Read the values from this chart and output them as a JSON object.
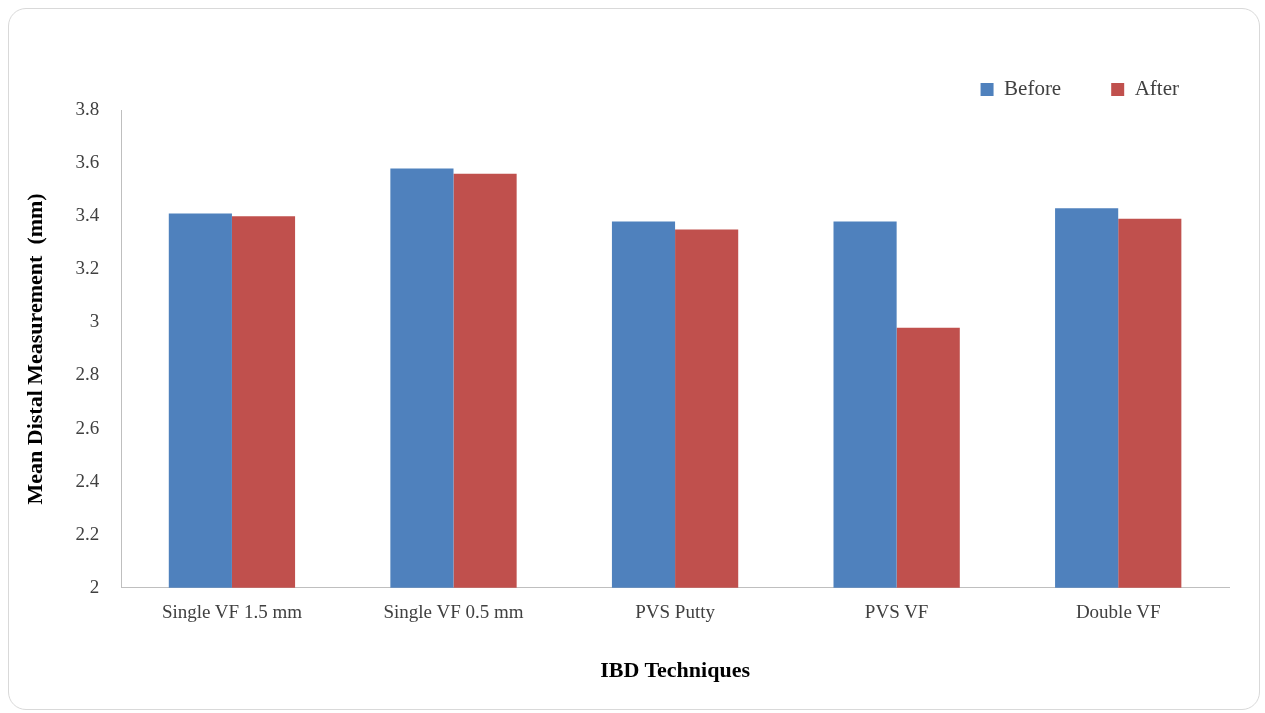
{
  "chart_data": {
    "type": "bar",
    "xlabel": "IBD Techniques",
    "ylabel": "Mean Distal Measurement  (mm)",
    "categories": [
      "Single VF 1.5 mm",
      "Single VF 0.5 mm",
      "PVS Putty",
      "PVS VF",
      "Double VF"
    ],
    "series": [
      {
        "name": "Before",
        "color": "#4f81bd",
        "values": [
          3.41,
          3.58,
          3.38,
          3.38,
          3.43
        ]
      },
      {
        "name": "After",
        "color": "#c0504d",
        "values": [
          3.4,
          3.56,
          3.35,
          2.98,
          3.39
        ]
      }
    ],
    "ylim": [
      2,
      3.8
    ],
    "yticks": [
      2,
      2.2,
      2.4,
      2.6,
      2.8,
      3,
      3.2,
      3.4,
      3.6,
      3.8
    ],
    "grid": false,
    "legend": "top right"
  }
}
